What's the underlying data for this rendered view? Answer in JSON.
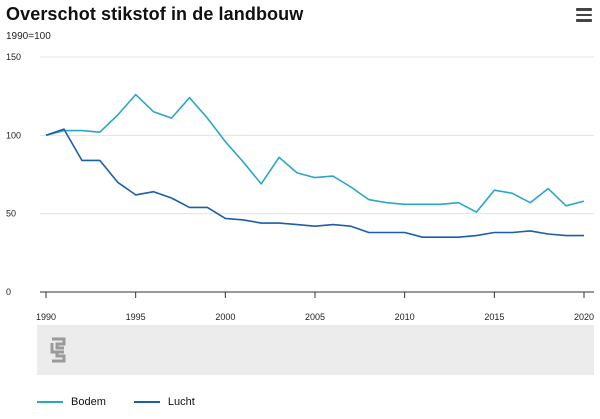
{
  "header": {
    "title": "Overschot stikstof in de landbouw",
    "subtitle": "1990=100",
    "menu_icon": "hamburger-menu-icon"
  },
  "colors": {
    "bodem": "#2aa6c9",
    "lucht": "#1d5ea8",
    "grid": "#e3e3e3",
    "axis": "#333333"
  },
  "logo_icon": "cbs-logo-icon",
  "chart_data": {
    "type": "line",
    "title": "Overschot stikstof in de landbouw",
    "subtitle": "1990=100",
    "xlim": [
      1990,
      2020
    ],
    "ylim": [
      0,
      150
    ],
    "yticks": [
      0,
      50,
      100,
      150
    ],
    "xticks": [
      1990,
      1995,
      2000,
      2005,
      2010,
      2015,
      2020
    ],
    "grid": true,
    "legend_position": "bottom-left",
    "x": [
      1990,
      1991,
      1992,
      1993,
      1994,
      1995,
      1996,
      1997,
      1998,
      1999,
      2000,
      2001,
      2002,
      2003,
      2004,
      2005,
      2006,
      2007,
      2008,
      2009,
      2010,
      2011,
      2012,
      2013,
      2014,
      2015,
      2016,
      2017,
      2018,
      2019,
      2020
    ],
    "series": [
      {
        "name": "Bodem",
        "color": "#2aa6c9",
        "values": [
          100,
          103,
          103,
          102,
          113,
          126,
          115,
          111,
          124,
          111,
          96,
          83,
          69,
          86,
          76,
          73,
          74,
          67,
          59,
          57,
          56,
          56,
          56,
          57,
          51,
          65,
          63,
          57,
          66,
          55,
          58
        ]
      },
      {
        "name": "Lucht",
        "color": "#1d5ea8",
        "values": [
          100,
          104,
          84,
          84,
          70,
          62,
          64,
          60,
          54,
          54,
          47,
          46,
          44,
          44,
          43,
          42,
          43,
          42,
          38,
          38,
          38,
          35,
          35,
          35,
          36,
          38,
          38,
          39,
          37,
          36,
          36
        ]
      }
    ]
  }
}
